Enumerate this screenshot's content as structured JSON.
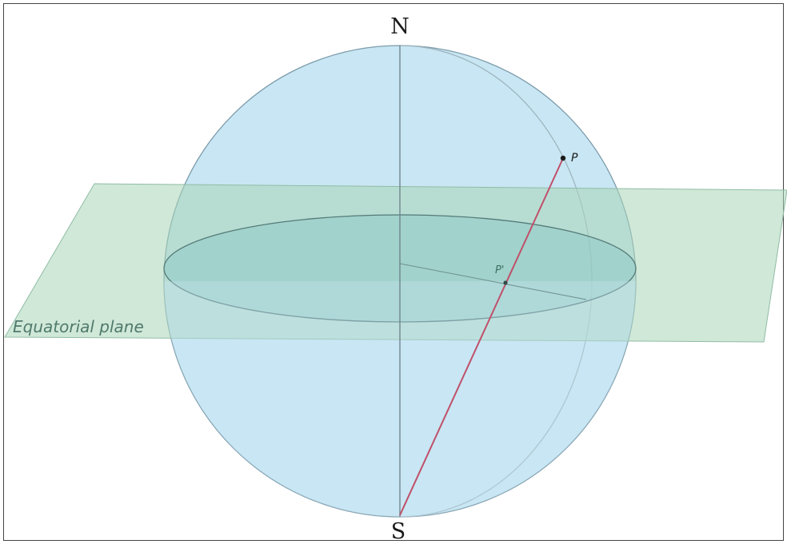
{
  "labels": {
    "north": "N",
    "south": "S",
    "point_p": "P",
    "point_p_prime": "P'",
    "plane": "Equatorial plane"
  },
  "colors": {
    "sphere_fill": "#c8e6f3",
    "sphere_stroke": "#6f8fa0",
    "plane_fill": "#a9d6b8",
    "disk_fill": "#8fc9c4",
    "projection_line": "#c0506a",
    "axis": "#6b7f88",
    "plane_label": "#4f7a6c"
  }
}
